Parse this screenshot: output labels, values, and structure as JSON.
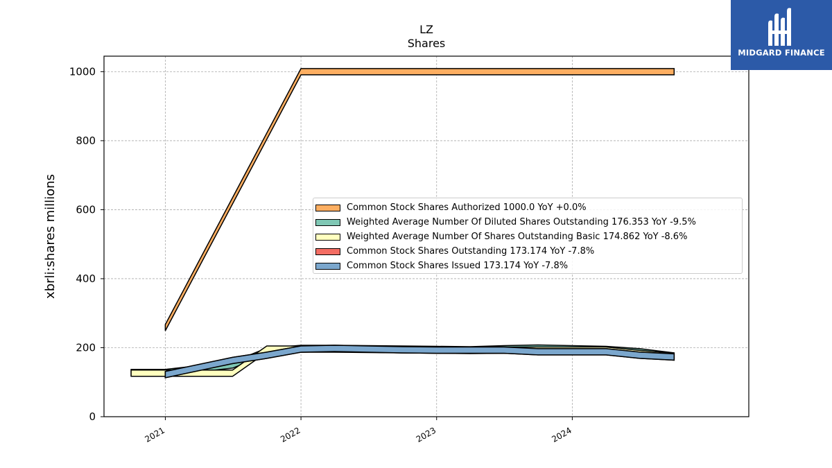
{
  "chart_data": {
    "type": "area",
    "title": "LZ",
    "subtitle": "Shares",
    "xlabel": "",
    "ylabel": "xbrli:shares millions",
    "ylim": [
      0,
      1045
    ],
    "xlim": [
      "2020-07-20",
      "2025-04-20"
    ],
    "yticks": [
      0,
      200,
      400,
      600,
      800,
      1000
    ],
    "xticks": [
      "2021",
      "2022",
      "2023",
      "2024"
    ],
    "grid": true,
    "legend_position": "center-right",
    "series": [
      {
        "name": "Common Stock Shares Authorized  1000.0 YoY +0.0%",
        "color": "#fdae61",
        "x": [
          "2021-01-01",
          "2022-01-01",
          "2022-07-01",
          "2023-01-01",
          "2023-07-01",
          "2024-01-01",
          "2024-07-01",
          "2024-10-01"
        ],
        "values": [
          258,
          1000,
          1000,
          1000,
          1000,
          1000,
          1000,
          1000
        ]
      },
      {
        "name": "Weighted Average Number Of Diluted Shares Outstanding  176.353 YoY -9.5%",
        "color": "#7fc7b4",
        "x": [
          "2020-10-01",
          "2021-01-01",
          "2021-07-01",
          "2021-10-01",
          "2022-01-01",
          "2022-04-01",
          "2022-07-01",
          "2022-10-01",
          "2023-01-01",
          "2023-04-01",
          "2023-07-01",
          "2023-10-01",
          "2024-01-01",
          "2024-04-01",
          "2024-07-01",
          "2024-10-01"
        ],
        "values": [
          128,
          128,
          150,
          190,
          198,
          198,
          197,
          196,
          195,
          194,
          197,
          199,
          197,
          195,
          188,
          176
        ]
      },
      {
        "name": "Weighted Average Number Of Shares Outstanding Basic  174.862 YoY -8.6%",
        "color": "#ffffbf",
        "x": [
          "2020-10-01",
          "2021-01-01",
          "2021-07-01",
          "2021-10-01",
          "2022-01-01",
          "2022-04-01",
          "2022-07-01",
          "2022-10-01",
          "2023-01-01",
          "2023-04-01",
          "2023-07-01",
          "2023-10-01",
          "2024-01-01",
          "2024-04-01",
          "2024-07-01",
          "2024-10-01"
        ],
        "values": [
          126,
          126,
          126,
          196,
          196,
          196,
          195,
          194,
          193,
          192,
          193,
          193,
          193,
          193,
          183,
          175
        ]
      },
      {
        "name": "Common Stock Shares Outstanding  173.174 YoY -7.8%",
        "color": "#f46d63",
        "x": [
          "2021-01-01",
          "2021-07-01",
          "2021-10-01",
          "2022-01-01",
          "2022-04-01",
          "2022-07-01",
          "2022-10-01",
          "2023-01-01",
          "2023-04-01",
          "2023-07-01",
          "2023-10-01",
          "2024-01-01",
          "2024-04-01",
          "2024-07-01",
          "2024-10-01"
        ],
        "values": [
          122,
          163,
          178,
          196,
          198,
          196,
          194,
          193,
          193,
          193,
          188,
          188,
          188,
          178,
          173
        ]
      },
      {
        "name": "Common Stock Shares Issued  173.174 YoY -7.8%",
        "color": "#7ba7cd",
        "x": [
          "2021-01-01",
          "2021-07-01",
          "2021-10-01",
          "2022-01-01",
          "2022-04-01",
          "2022-07-01",
          "2022-10-01",
          "2023-01-01",
          "2023-04-01",
          "2023-07-01",
          "2023-10-01",
          "2024-01-01",
          "2024-04-01",
          "2024-07-01",
          "2024-10-01"
        ],
        "values": [
          122,
          163,
          178,
          196,
          198,
          196,
          194,
          193,
          193,
          193,
          188,
          188,
          188,
          178,
          173
        ]
      }
    ]
  },
  "logo": {
    "text": "MIDGARD FINANCE",
    "color": "#2c5aa8"
  }
}
